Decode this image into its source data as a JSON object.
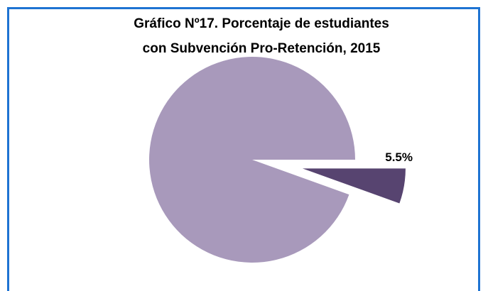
{
  "chart_data": {
    "type": "pie",
    "title": [
      "Gráfico Nº17. Porcentaje de estudiantes",
      "con Subvención Pro-Retención, 2015"
    ],
    "values": [
      5.5,
      94.5
    ],
    "value_labels": [
      "5.5%",
      null
    ],
    "colors": [
      "#574470",
      "#a899bb"
    ],
    "explode": [
      true,
      false
    ]
  }
}
